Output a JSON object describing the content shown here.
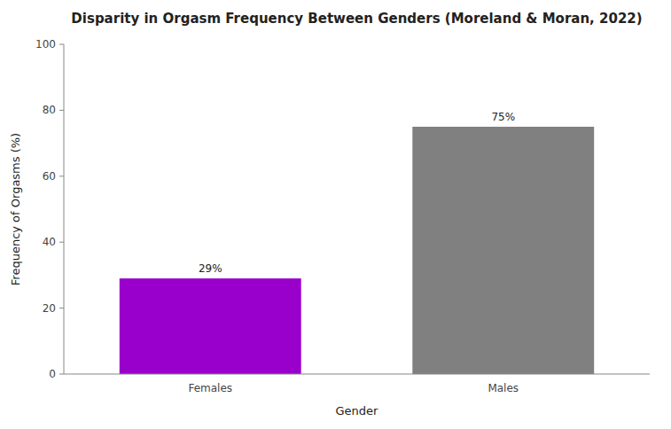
{
  "chart_data": {
    "type": "bar",
    "title": "Disparity in Orgasm Frequency Between Genders (Moreland & Moran, 2022)",
    "categories": [
      "Females",
      "Males"
    ],
    "values": [
      29,
      75
    ],
    "colors": [
      "#9900cc",
      "#808080"
    ],
    "xlabel": "Gender",
    "ylabel": "Frequency of Orgasms (%)",
    "ylim": [
      0,
      100
    ],
    "yticks": [
      0,
      20,
      40,
      60,
      80,
      100
    ],
    "grid": false,
    "data_labels": true,
    "value_labels": [
      "29%",
      "75%"
    ]
  }
}
